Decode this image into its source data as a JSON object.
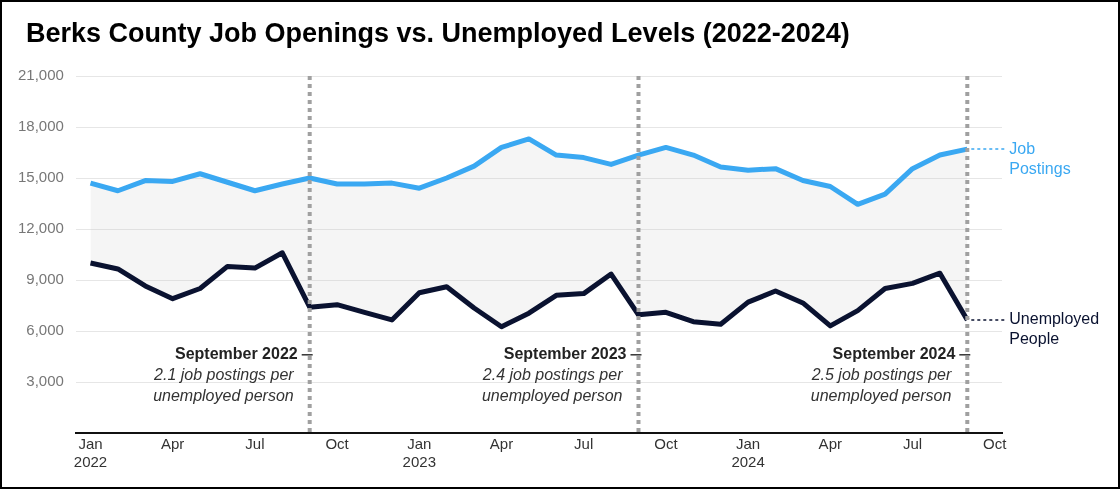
{
  "chart_data": {
    "type": "line",
    "title": "Berks County Job Openings vs. Unemployed Levels (2022-2024)",
    "x": [
      "2022-01",
      "2022-02",
      "2022-03",
      "2022-04",
      "2022-05",
      "2022-06",
      "2022-07",
      "2022-08",
      "2022-09",
      "2022-10",
      "2022-11",
      "2022-12",
      "2023-01",
      "2023-02",
      "2023-03",
      "2023-04",
      "2023-05",
      "2023-06",
      "2023-07",
      "2023-08",
      "2023-09",
      "2023-10",
      "2023-11",
      "2023-12",
      "2024-01",
      "2024-02",
      "2024-03",
      "2024-04",
      "2024-05",
      "2024-06",
      "2024-07",
      "2024-08",
      "2024-09"
    ],
    "series": [
      {
        "name": "Job Postings",
        "color": "#3aa8f2",
        "values": [
          14700,
          14250,
          14850,
          14800,
          15250,
          14750,
          14250,
          14650,
          15000,
          14650,
          14650,
          14700,
          14400,
          15000,
          15700,
          16800,
          17300,
          16350,
          16200,
          15800,
          16350,
          16800,
          16350,
          15650,
          15450,
          15550,
          14850,
          14500,
          13450,
          14050,
          15550,
          16350,
          16700
        ],
        "upper": [
          14700,
          14250,
          14850,
          14800,
          15250,
          14750,
          14250,
          14650,
          15000,
          14650,
          14650,
          14700,
          14400,
          15000,
          15700,
          16800,
          17300,
          16350,
          16200,
          15800,
          16350,
          16800,
          16350,
          15650,
          15450,
          15550,
          14850,
          14500,
          13450,
          14050,
          15550,
          16350,
          16700
        ],
        "lower": [
          10000,
          9650,
          8650,
          7900,
          8500,
          9800,
          9700,
          10600,
          7400,
          7550,
          7100,
          6650,
          8250,
          8600,
          7350,
          6250,
          7050,
          8100,
          8200,
          9350,
          6950,
          7100,
          6550,
          6400,
          7700,
          8350,
          7650,
          6300,
          7200,
          8500,
          8800,
          9400,
          6650
        ]
      },
      {
        "name": "Unemployed People",
        "color": "#0a1230",
        "values": [
          10000,
          9650,
          8650,
          7900,
          8500,
          9800,
          9700,
          10600,
          7400,
          7550,
          7100,
          6650,
          8250,
          8600,
          7350,
          6250,
          7050,
          8100,
          8200,
          9350,
          6950,
          7100,
          6550,
          6400,
          7700,
          8350,
          7650,
          6300,
          7200,
          8500,
          8800,
          9400,
          6650
        ]
      }
    ],
    "xlim": [
      "2021-12-15",
      "2024-10-09"
    ],
    "xticks": [
      {
        "value": "2022-01",
        "label": "Jan\n2022"
      },
      {
        "value": "2022-04",
        "label": "Apr"
      },
      {
        "value": "2022-07",
        "label": "Jul"
      },
      {
        "value": "2022-10",
        "label": "Oct"
      },
      {
        "value": "2023-01",
        "label": "Jan\n2023"
      },
      {
        "value": "2023-04",
        "label": "Apr"
      },
      {
        "value": "2023-07",
        "label": "Jul"
      },
      {
        "value": "2023-10",
        "label": "Oct"
      },
      {
        "value": "2024-01",
        "label": "Jan\n2024"
      },
      {
        "value": "2024-04",
        "label": "Apr"
      },
      {
        "value": "2024-07",
        "label": "Jul"
      },
      {
        "value": "2024-10",
        "label": "Oct"
      }
    ],
    "ylim": [
      0,
      21000
    ],
    "yticks": [
      {
        "value": 3000,
        "label": "3,000"
      },
      {
        "value": 6000,
        "label": "6,000"
      },
      {
        "value": 9000,
        "label": "9,000"
      },
      {
        "value": 12000,
        "label": "12,000"
      },
      {
        "value": 15000,
        "label": "15,000"
      },
      {
        "value": 18000,
        "label": "18,000"
      },
      {
        "value": 21000,
        "label": "21,000"
      }
    ],
    "grid": "y",
    "marker": "none",
    "ref_lines": [
      {
        "axis": "x",
        "value": "2022-09",
        "label": "September 2022",
        "color": "#a0a0a0",
        "line_style": "dotted"
      },
      {
        "axis": "x",
        "value": "2023-09",
        "label": "September 2023",
        "color": "#a0a0a0",
        "line_style": "dotted"
      },
      {
        "axis": "x",
        "value": "2024-09",
        "label": "September 2024",
        "color": "#a0a0a0",
        "line_style": "dotted"
      }
    ],
    "annotations": [
      {
        "text": "2.1 job postings per unemployed person",
        "x": "2022-09"
      },
      {
        "text": "2.4 job postings per unemployed person",
        "x": "2023-09"
      },
      {
        "text": "2.5 job postings per unemployed person",
        "x": "2024-09"
      }
    ]
  }
}
